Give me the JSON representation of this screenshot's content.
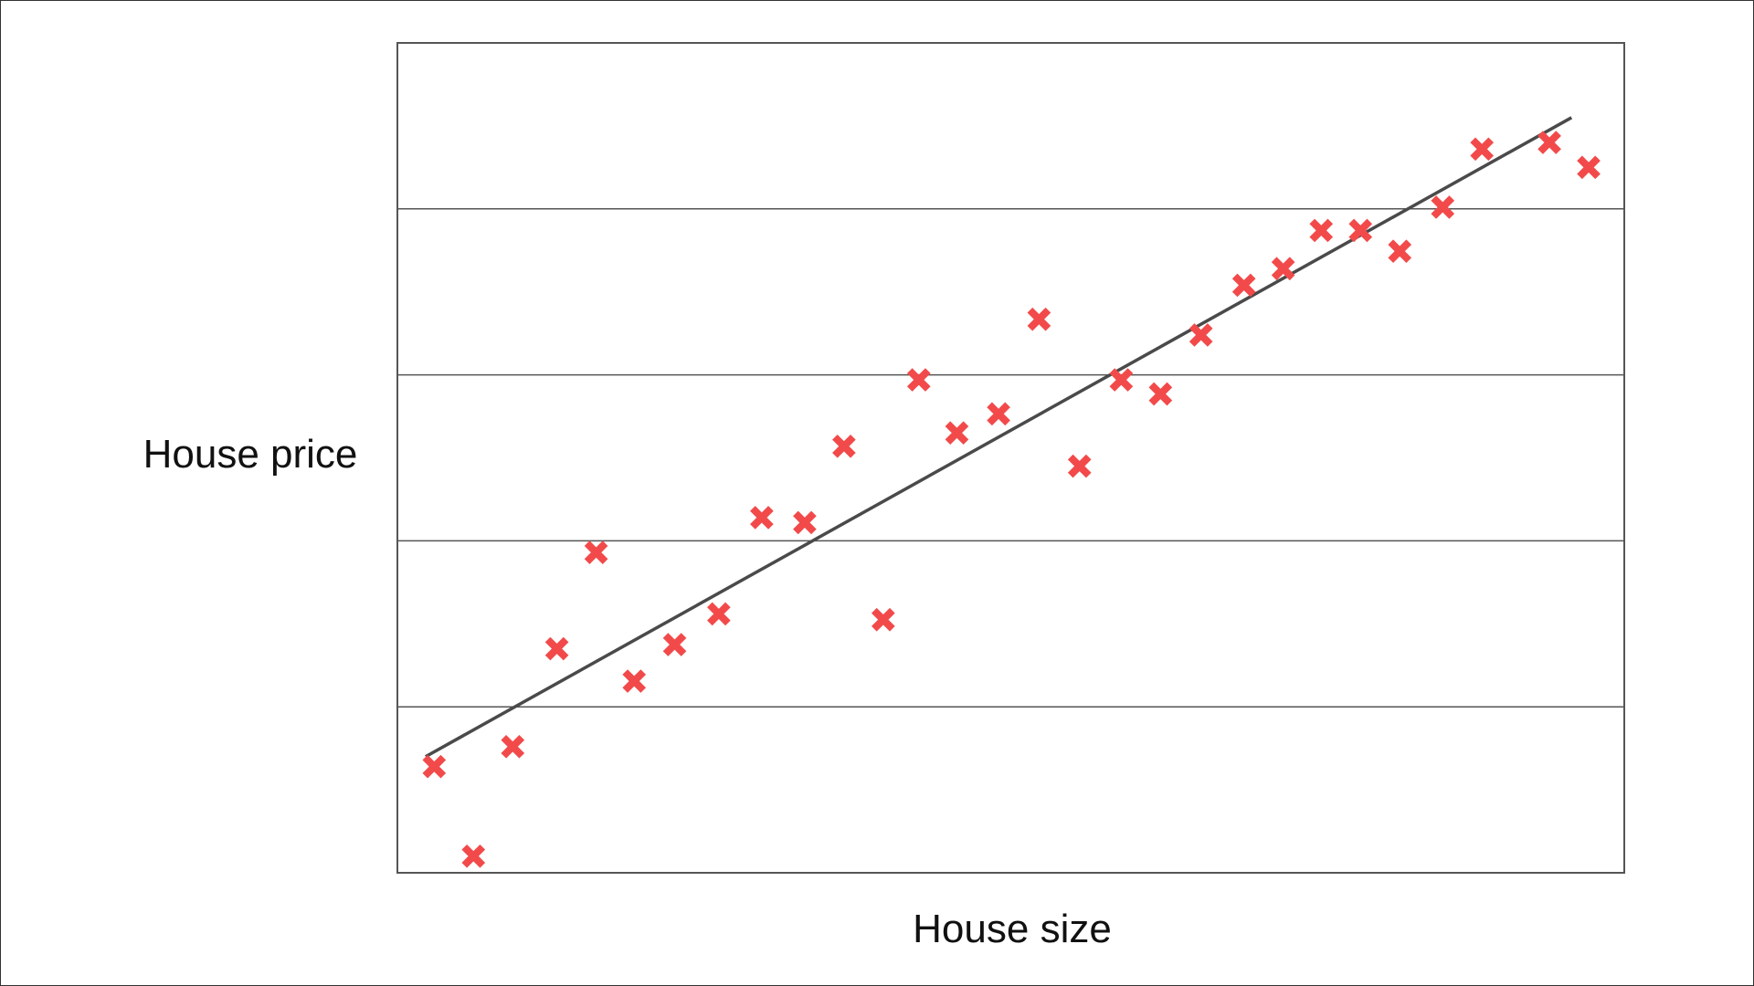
{
  "chart_data": {
    "type": "scatter",
    "title": "",
    "xlabel": "House size",
    "ylabel": "House price",
    "xlim": [
      0,
      100
    ],
    "ylim": [
      0,
      100
    ],
    "grid": "horizontal",
    "colors": {
      "marker": "#f24a4a",
      "fit_line": "#4a4a4a",
      "grid": "#555555",
      "frame": "#555555"
    },
    "points": [
      {
        "x": 3.0,
        "y": 12.8
      },
      {
        "x": 6.2,
        "y": 2.0
      },
      {
        "x": 9.4,
        "y": 15.2
      },
      {
        "x": 13.0,
        "y": 27.0
      },
      {
        "x": 16.2,
        "y": 38.6
      },
      {
        "x": 19.3,
        "y": 23.1
      },
      {
        "x": 22.6,
        "y": 27.5
      },
      {
        "x": 26.2,
        "y": 31.2
      },
      {
        "x": 29.7,
        "y": 42.8
      },
      {
        "x": 33.2,
        "y": 42.2
      },
      {
        "x": 36.4,
        "y": 51.4
      },
      {
        "x": 39.6,
        "y": 30.5
      },
      {
        "x": 42.5,
        "y": 59.4
      },
      {
        "x": 45.6,
        "y": 53.0
      },
      {
        "x": 49.0,
        "y": 55.3
      },
      {
        "x": 52.3,
        "y": 66.7
      },
      {
        "x": 55.6,
        "y": 49.0
      },
      {
        "x": 59.0,
        "y": 59.4
      },
      {
        "x": 62.2,
        "y": 57.7
      },
      {
        "x": 65.5,
        "y": 64.8
      },
      {
        "x": 69.0,
        "y": 70.8
      },
      {
        "x": 72.2,
        "y": 72.8
      },
      {
        "x": 75.3,
        "y": 77.4
      },
      {
        "x": 78.5,
        "y": 77.4
      },
      {
        "x": 81.7,
        "y": 74.9
      },
      {
        "x": 85.2,
        "y": 80.2
      },
      {
        "x": 88.4,
        "y": 87.2
      },
      {
        "x": 93.9,
        "y": 88.0
      },
      {
        "x": 97.1,
        "y": 85.0
      }
    ],
    "fit_line": {
      "x": [
        2.3,
        95.7
      ],
      "y": [
        14.0,
        91.0
      ]
    }
  }
}
